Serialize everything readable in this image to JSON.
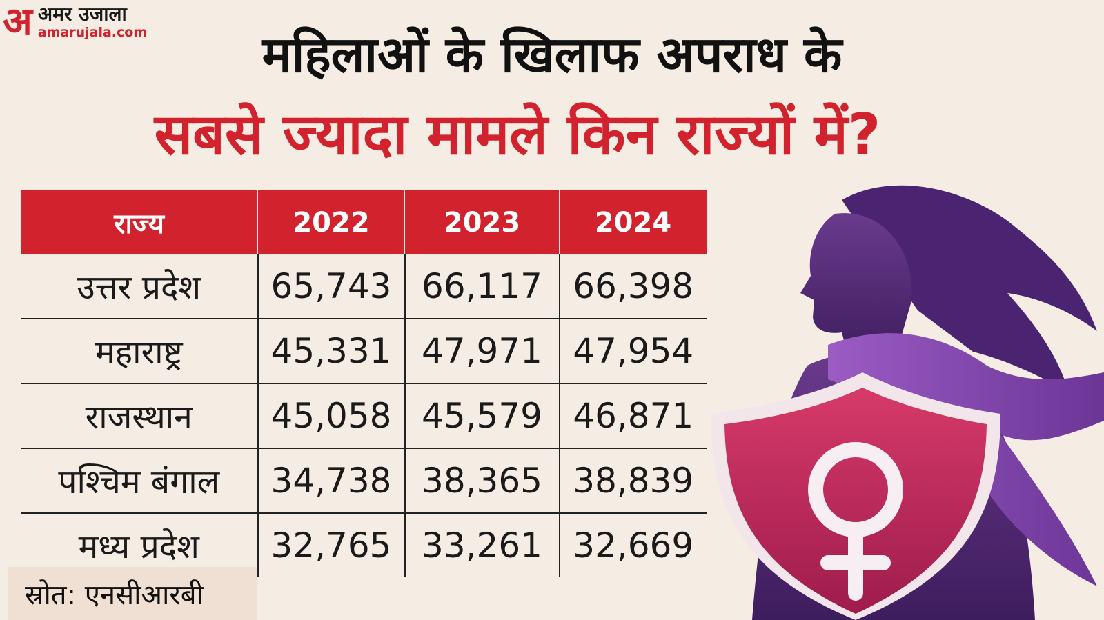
{
  "logo": {
    "mark": "अ",
    "name_hindi": "अमर उजाला",
    "name_url": "amarujala.com"
  },
  "title": {
    "line1": "महिलाओं के खिलाफ अपराध के",
    "line2": "सबसे ज्यादा मामले किन राज्यों में?"
  },
  "chart_data": {
    "type": "table",
    "columns": [
      "राज्य",
      "2022",
      "2023",
      "2024"
    ],
    "rows": [
      {
        "state": "उत्तर प्रदेश",
        "values": [
          "65,743",
          "66,117",
          "66,398"
        ]
      },
      {
        "state": "महाराष्ट्र",
        "values": [
          "45,331",
          "47,971",
          "47,954"
        ]
      },
      {
        "state": "राजस्थान",
        "values": [
          "45,058",
          "45,579",
          "46,871"
        ]
      },
      {
        "state": "पश्चिम बंगाल",
        "values": [
          "34,738",
          "38,365",
          "38,839"
        ]
      },
      {
        "state": "मध्य प्रदेश",
        "values": [
          "32,765",
          "33,261",
          "32,669"
        ]
      }
    ]
  },
  "source": "स्रोत: एनसीआरबी",
  "colors": {
    "accent": "#d1222d",
    "background": "#f5ede4",
    "illustration_purple": "#5a2a7a",
    "shield": "#c8285a"
  },
  "illustration": {
    "icon": "woman-silhouette-with-shield-and-female-symbol"
  }
}
